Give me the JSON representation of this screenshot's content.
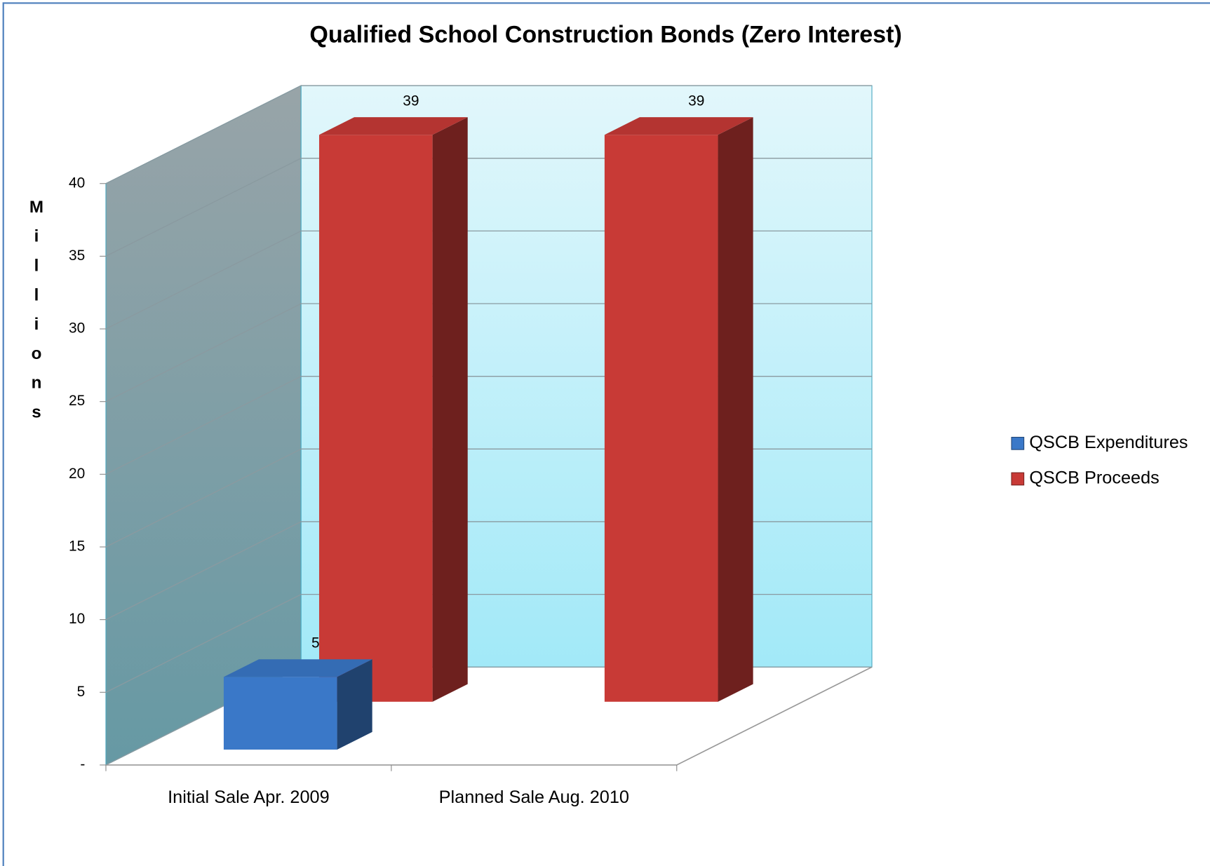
{
  "chart_data": {
    "type": "bar3d",
    "title": "Qualified School Construction Bonds (Zero Interest)",
    "y_label": "Millions",
    "categories": [
      "Initial Sale Apr. 2009",
      "Planned Sale Aug. 2010"
    ],
    "series": [
      {
        "name": "QSCB Expenditures",
        "color": "#3a78c8",
        "values": [
          5,
          null
        ]
      },
      {
        "name": "QSCB Proceeds",
        "color": "#c83a36",
        "values": [
          39,
          39
        ]
      }
    ],
    "ylim": [
      0,
      40
    ],
    "yticks": [
      {
        "value": 0,
        "label": "-"
      },
      5,
      10,
      15,
      20,
      25,
      30,
      35,
      40
    ],
    "grid": true,
    "legend": "right"
  }
}
